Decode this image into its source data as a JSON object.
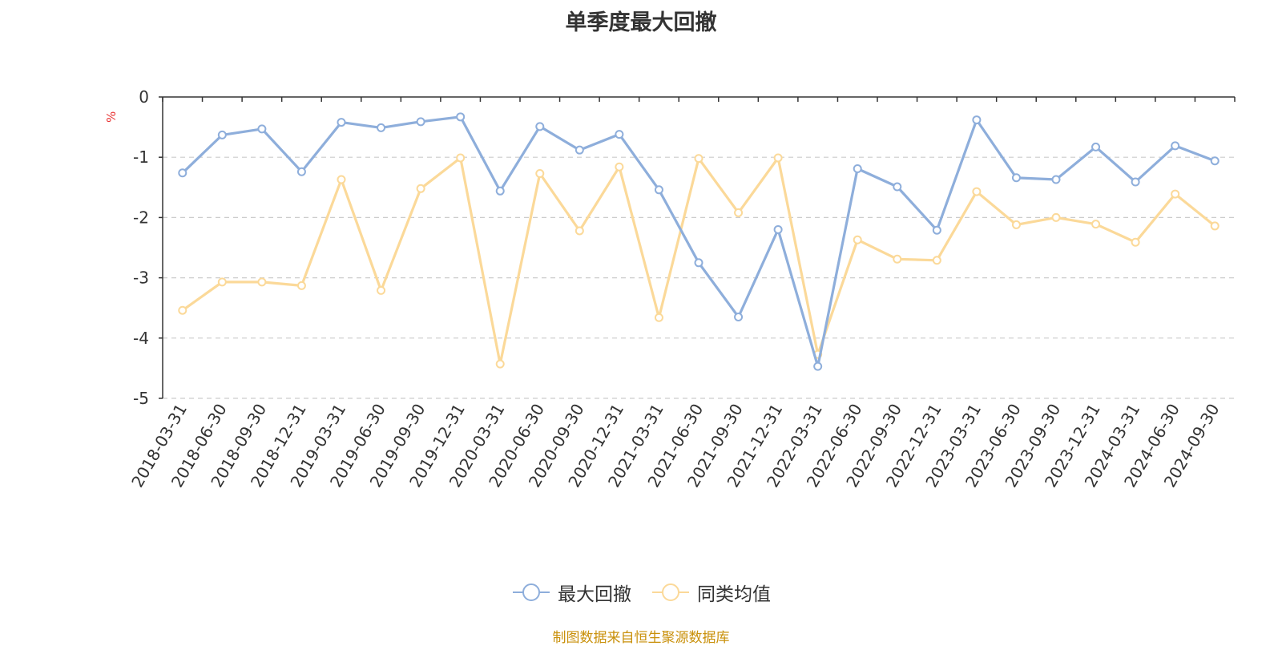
{
  "title": "单季度最大回撤",
  "source": "制图数据来自恒生聚源数据库",
  "chart_data": {
    "type": "line",
    "title": "单季度最大回撤",
    "ylabel": "%",
    "xlabel": "",
    "ylim": [
      -5,
      0
    ],
    "yticks": [
      0,
      -1,
      -2,
      -3,
      -4,
      -5
    ],
    "grid": true,
    "legend_position": "bottom-center",
    "categories": [
      "2018-03-31",
      "2018-06-30",
      "2018-09-30",
      "2018-12-31",
      "2019-03-31",
      "2019-06-30",
      "2019-09-30",
      "2019-12-31",
      "2020-03-31",
      "2020-06-30",
      "2020-09-30",
      "2020-12-31",
      "2021-03-31",
      "2021-06-30",
      "2021-09-30",
      "2021-12-31",
      "2022-03-31",
      "2022-06-30",
      "2022-09-30",
      "2022-12-31",
      "2023-03-31",
      "2023-06-30",
      "2023-09-30",
      "2023-12-31",
      "2024-03-31",
      "2024-06-30",
      "2024-09-30"
    ],
    "series": [
      {
        "name": "最大回撤",
        "color": "#8eaedb",
        "values": [
          -1.26,
          -0.63,
          -0.53,
          -1.24,
          -0.42,
          -0.51,
          -0.41,
          -0.33,
          -1.56,
          -0.49,
          -0.88,
          -0.62,
          -1.54,
          -2.75,
          -3.65,
          -2.2,
          -4.47,
          -1.19,
          -1.49,
          -2.21,
          -0.38,
          -1.34,
          -1.37,
          -0.83,
          -1.41,
          -0.81,
          -1.06
        ]
      },
      {
        "name": "同类均值",
        "color": "#fbd999",
        "values": [
          -3.54,
          -3.07,
          -3.07,
          -3.13,
          -1.37,
          -3.21,
          -1.52,
          -1.01,
          -4.43,
          -1.27,
          -2.22,
          -1.16,
          -3.66,
          -1.02,
          -1.92,
          -1.01,
          -4.27,
          -2.37,
          -2.69,
          -2.71,
          -1.57,
          -2.12,
          -2.0,
          -2.11,
          -2.41,
          -1.61,
          -2.14
        ]
      }
    ]
  }
}
